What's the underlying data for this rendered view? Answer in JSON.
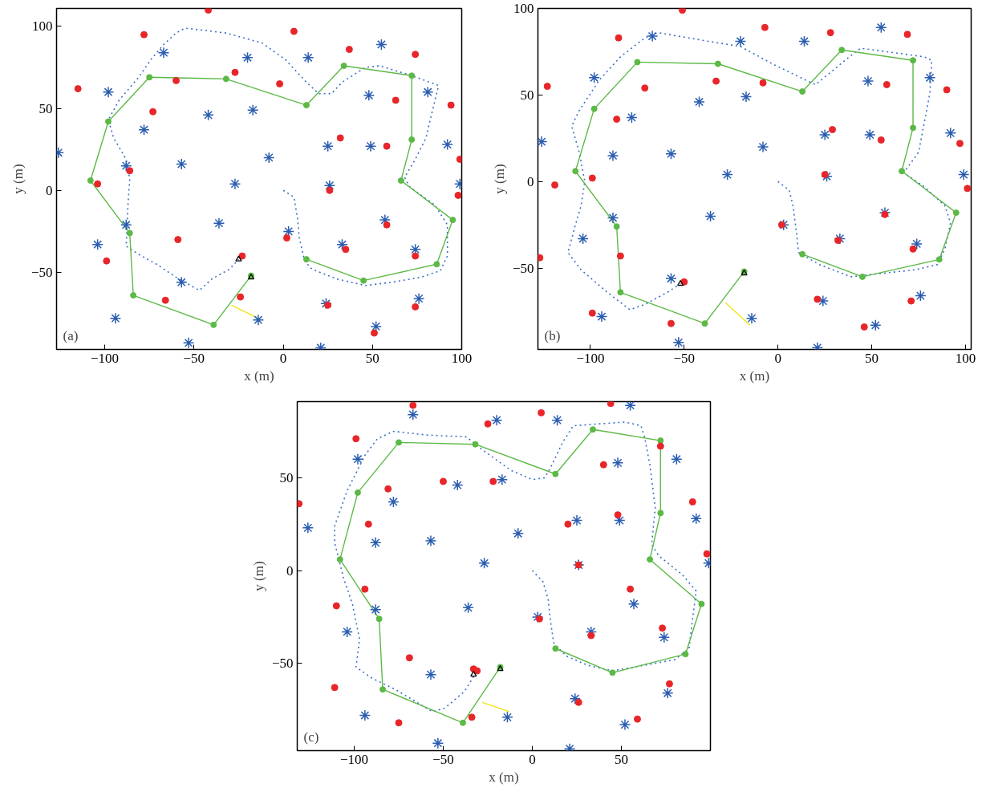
{
  "chart_data": [
    {
      "type": "scatter",
      "xlabel": "x (m)",
      "ylabel": "y (m)",
      "annotations": [
        "(a)"
      ],
      "grid": false,
      "xlim": [
        -127,
        100
      ],
      "ylim": [
        -97,
        111
      ],
      "xticks": [
        -100,
        -50,
        0,
        50,
        100
      ],
      "yticks": [
        -50,
        0,
        50,
        100
      ],
      "series": [
        {
          "type": "line",
          "color": "#3b6fc8",
          "line_style": "dotted",
          "marker": "none",
          "x": [
            0,
            6,
            8,
            9,
            12,
            16,
            30,
            46,
            61,
            77,
            88,
            92,
            92,
            85,
            71,
            68,
            74,
            80,
            83,
            87,
            72,
            54,
            46,
            33,
            27,
            20,
            13,
            1,
            -12,
            -32,
            -55,
            -60,
            -67,
            -74,
            -81,
            -92,
            -98,
            -95,
            -88,
            -86,
            -87,
            -88,
            -81,
            -71,
            -60,
            -47,
            -40,
            -30,
            -25
          ],
          "values": [
            0,
            -4,
            -17,
            -29,
            -43,
            -48,
            -54,
            -58,
            -56,
            -53,
            -49,
            -40,
            -21,
            -9,
            2,
            8,
            19,
            32,
            46,
            64,
            70,
            76,
            75,
            66,
            59,
            59,
            66,
            80,
            90,
            96,
            99,
            96,
            89,
            80,
            69,
            55,
            43,
            32,
            19,
            7,
            -9,
            -34,
            -39,
            -45,
            -53,
            -61,
            -54,
            -48,
            -42
          ]
        },
        {
          "type": "line",
          "color": "#5cb946",
          "line_style": "solid",
          "marker": "circle",
          "x": [
            13,
            45,
            86,
            95,
            66,
            72,
            72,
            34,
            13,
            -32,
            -75,
            -98,
            -108,
            -86,
            -84,
            -39,
            -18
          ],
          "values": [
            -42,
            -55,
            -45,
            -18,
            6,
            31,
            70,
            76,
            52,
            68,
            69,
            42,
            6,
            -26,
            -64,
            -82,
            -52
          ]
        },
        {
          "type": "line",
          "color": "#f2e21a",
          "line_style": "solid",
          "marker": "none",
          "x": [
            -29,
            -14
          ],
          "values": [
            -70,
            -78
          ]
        },
        {
          "color": "#2a5db0",
          "marker": "cross",
          "x": [
            55,
            -67,
            -20,
            14,
            -98,
            81,
            48,
            -17,
            -42,
            -78,
            92,
            25,
            49,
            -126,
            -8,
            -88,
            -57,
            -27,
            26,
            99,
            57,
            -36,
            -88,
            3,
            -104,
            33,
            74,
            -57,
            24,
            76,
            -94,
            -14,
            52,
            -53,
            21
          ],
          "values": [
            89,
            84,
            81,
            81,
            60,
            60,
            58,
            49,
            46,
            37,
            28,
            27,
            27,
            23,
            20,
            15,
            16,
            4,
            3,
            4,
            -18,
            -20,
            -21,
            -25,
            -33,
            -33,
            -36,
            -56,
            -69,
            -66,
            -78,
            -79,
            -83,
            -93,
            -96
          ]
        },
        {
          "color": "#e8262a",
          "marker": "circle",
          "x": [
            -42,
            -78,
            6,
            37,
            74,
            -115,
            -27,
            -60,
            -2,
            63,
            94,
            -73,
            32,
            58,
            99,
            -86,
            -104,
            26,
            98,
            58,
            2,
            -59,
            35,
            74,
            -99,
            -23,
            -24,
            -66,
            25,
            74,
            51
          ],
          "values": [
            110,
            95,
            97,
            86,
            83,
            62,
            72,
            67,
            65,
            55,
            52,
            48,
            32,
            27,
            19,
            12,
            4,
            0,
            -3,
            -21,
            -29,
            -30,
            -36,
            -40,
            -43,
            -40,
            -65,
            -67,
            -70,
            -71,
            -87
          ]
        },
        {
          "color": "#000000",
          "marker": "triangle",
          "x": [
            -25,
            -18
          ],
          "values": [
            -42,
            -53
          ]
        }
      ]
    },
    {
      "type": "scatter",
      "xlabel": "x (m)",
      "ylabel": "y (m)",
      "annotations": [
        "(b)"
      ],
      "grid": false,
      "xlim": [
        -128,
        103
      ],
      "ylim": [
        -97,
        100
      ],
      "xticks": [
        -100,
        -50,
        0,
        50,
        100
      ],
      "yticks": [
        -50,
        0,
        50,
        100
      ],
      "series": [
        {
          "type": "line",
          "color": "#3b6fc8",
          "line_style": "dotted",
          "marker": "none",
          "x": [
            0,
            6,
            8,
            10,
            11,
            22,
            39,
            56,
            73,
            85,
            89,
            92,
            89,
            78,
            67,
            75,
            78,
            81,
            82,
            78,
            65,
            44,
            38,
            28,
            20,
            14,
            -3,
            -20,
            -37,
            -64,
            -71,
            -84,
            -95,
            -106,
            -110,
            -106,
            -103,
            -105,
            -108,
            -112,
            -105,
            -91,
            -79,
            -71,
            -59,
            -52
          ],
          "values": [
            0,
            -5,
            -14,
            -31,
            -41,
            -48,
            -55,
            -53,
            -51,
            -48,
            -39,
            -24,
            -14,
            -3,
            5,
            17,
            34,
            51,
            70,
            72,
            74,
            77,
            72,
            63,
            56,
            59,
            68,
            78,
            81,
            86,
            83,
            72,
            59,
            41,
            32,
            17,
            0,
            -14,
            -25,
            -41,
            -51,
            -64,
            -74,
            -71,
            -64,
            -59
          ]
        },
        {
          "type": "line",
          "color": "#5cb946",
          "line_style": "solid",
          "marker": "circle",
          "x": [
            13,
            45,
            86,
            95,
            66,
            72,
            72,
            34,
            13,
            -32,
            -75,
            -98,
            -108,
            -86,
            -84,
            -39,
            -18
          ],
          "values": [
            -42,
            -55,
            -45,
            -18,
            6,
            31,
            70,
            76,
            52,
            68,
            69,
            42,
            6,
            -26,
            -64,
            -82,
            -52
          ]
        },
        {
          "type": "line",
          "color": "#f2e21a",
          "line_style": "solid",
          "marker": "none",
          "x": [
            -28,
            -15
          ],
          "values": [
            -70,
            -83
          ]
        },
        {
          "color": "#2a5db0",
          "marker": "cross",
          "x": [
            55,
            -67,
            -20,
            14,
            -98,
            81,
            48,
            -17,
            -42,
            -78,
            92,
            25,
            49,
            -126,
            -8,
            -88,
            -57,
            -27,
            26,
            99,
            57,
            -36,
            -88,
            3,
            -104,
            33,
            74,
            -57,
            24,
            76,
            -94,
            -14,
            52,
            -53,
            21
          ],
          "values": [
            89,
            84,
            81,
            81,
            60,
            60,
            58,
            49,
            46,
            37,
            28,
            27,
            27,
            23,
            20,
            15,
            16,
            4,
            3,
            4,
            -18,
            -20,
            -21,
            -25,
            -33,
            -33,
            -36,
            -56,
            -69,
            -66,
            -78,
            -79,
            -83,
            -93,
            -96
          ]
        },
        {
          "color": "#e8262a",
          "marker": "circle",
          "x": [
            -51,
            -7,
            28,
            69,
            -85,
            -123,
            -71,
            -33,
            -8,
            58,
            90,
            -86,
            29,
            55,
            97,
            -99,
            -119,
            25,
            101,
            57,
            2,
            32,
            72,
            -84,
            -127,
            -50,
            21,
            71,
            -99,
            -57,
            46
          ],
          "values": [
            99,
            89,
            86,
            85,
            83,
            55,
            54,
            58,
            57,
            56,
            53,
            36,
            30,
            24,
            22,
            2,
            -2,
            4,
            -4,
            -19,
            -25,
            -34,
            -39,
            -43,
            -44,
            -58,
            -68,
            -69,
            -76,
            -82,
            -84
          ]
        },
        {
          "color": "#000000",
          "marker": "triangle",
          "x": [
            -52,
            -18
          ],
          "values": [
            -59,
            -53
          ]
        }
      ]
    },
    {
      "type": "scatter",
      "xlabel": "x (m)",
      "ylabel": "y (m)",
      "annotations": [
        "(c)"
      ],
      "grid": false,
      "xlim": [
        -132,
        100
      ],
      "ylim": [
        -97,
        91
      ],
      "xticks": [
        -100,
        -50,
        0,
        50
      ],
      "yticks": [
        -50,
        0,
        50
      ],
      "series": [
        {
          "type": "line",
          "color": "#3b6fc8",
          "line_style": "dotted",
          "marker": "none",
          "x": [
            0,
            6,
            9,
            10,
            12,
            19,
            31,
            45,
            63,
            80,
            88,
            90,
            92,
            84,
            71,
            67,
            69,
            66,
            63,
            61,
            52,
            23,
            17,
            10,
            7,
            0,
            -12,
            -28,
            -37,
            -59,
            -78,
            -87,
            -94,
            -104,
            -111,
            -111,
            -106,
            -101,
            -97,
            -99,
            -90,
            -77,
            -56,
            -49,
            -38,
            -31
          ],
          "values": [
            0,
            -6,
            -16,
            -26,
            -39,
            -46,
            -51,
            -54,
            -51,
            -48,
            -42,
            -26,
            -11,
            -2,
            8,
            14,
            34,
            57,
            72,
            78,
            80,
            78,
            69,
            55,
            50,
            49,
            54,
            65,
            72,
            73,
            75,
            71,
            62,
            43,
            24,
            15,
            -4,
            -18,
            -37,
            -52,
            -58,
            -64,
            -76,
            -74,
            -65,
            -54
          ]
        },
        {
          "type": "line",
          "color": "#5cb946",
          "line_style": "solid",
          "marker": "circle",
          "x": [
            13,
            45,
            86,
            95,
            66,
            72,
            72,
            34,
            13,
            -32,
            -75,
            -98,
            -108,
            -86,
            -84,
            -39,
            -18
          ],
          "values": [
            -42,
            -55,
            -45,
            -18,
            6,
            31,
            70,
            76,
            52,
            68,
            69,
            42,
            6,
            -26,
            -64,
            -82,
            -52
          ]
        },
        {
          "type": "line",
          "color": "#f2e21a",
          "line_style": "solid",
          "marker": "none",
          "x": [
            -28,
            -13
          ],
          "values": [
            -71,
            -76
          ]
        },
        {
          "color": "#2a5db0",
          "marker": "cross",
          "x": [
            55,
            -67,
            -20,
            14,
            -98,
            81,
            48,
            -17,
            -42,
            -78,
            92,
            25,
            49,
            -126,
            -8,
            -88,
            -57,
            -27,
            26,
            99,
            57,
            -36,
            -88,
            3,
            -104,
            33,
            74,
            -57,
            24,
            76,
            -94,
            -14,
            52,
            -53,
            21
          ],
          "values": [
            89,
            84,
            81,
            81,
            60,
            60,
            58,
            49,
            46,
            37,
            28,
            27,
            27,
            23,
            20,
            15,
            16,
            4,
            3,
            4,
            -18,
            -20,
            -21,
            -25,
            -33,
            -33,
            -36,
            -56,
            -69,
            -66,
            -78,
            -79,
            -83,
            -93,
            -96
          ]
        },
        {
          "color": "#e8262a",
          "marker": "circle",
          "x": [
            -67,
            44,
            5,
            -25,
            -99,
            72,
            40,
            -50,
            -22,
            -81,
            -131,
            90,
            48,
            20,
            -92,
            98,
            26,
            55,
            -94,
            -110,
            4,
            73,
            33,
            -69,
            -33,
            -31,
            77,
            -111,
            26,
            -34,
            59,
            -75
          ],
          "values": [
            89,
            90,
            85,
            79,
            71,
            67,
            57,
            48,
            48,
            44,
            36,
            37,
            30,
            25,
            25,
            9,
            3,
            -10,
            -10,
            -19,
            -26,
            -31,
            -35,
            -47,
            -53,
            -54,
            -61,
            -63,
            -71,
            -79,
            -80,
            -82
          ]
        },
        {
          "color": "#000000",
          "marker": "triangle",
          "x": [
            -33,
            -18
          ],
          "values": [
            -56,
            -53
          ]
        }
      ]
    }
  ]
}
